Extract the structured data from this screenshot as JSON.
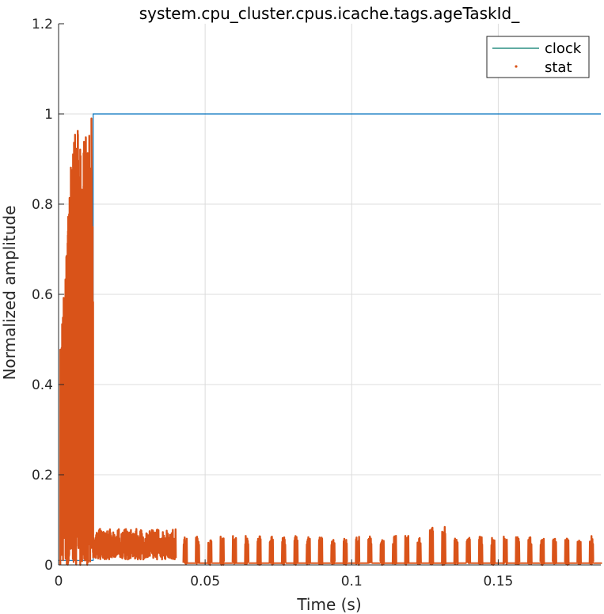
{
  "chart_data": {
    "type": "line",
    "title": "system.cpu_cluster.cpus.icache.tags.ageTaskId_",
    "xlabel": "Time (s)",
    "ylabel": "Normalized amplitude",
    "xlim": [
      0,
      0.185
    ],
    "ylim": [
      0,
      1.2
    ],
    "xticks": [
      0,
      0.05,
      0.1,
      0.15
    ],
    "xtick_labels": [
      "0",
      "0.05",
      "0.1",
      "0.15"
    ],
    "yticks": [
      0,
      0.2,
      0.4,
      0.6,
      0.8,
      1,
      1.2
    ],
    "ytick_labels": [
      "0",
      "0.2",
      "0.4",
      "0.6",
      "0.8",
      "1",
      "1.2"
    ],
    "grid": true,
    "legend_position": "top-right",
    "series": [
      {
        "name": "clock",
        "style": "line",
        "color": "#0072BD",
        "legend_color": "#00796B",
        "x": [
          0,
          0.0118,
          0.0118,
          0.185
        ],
        "y": [
          0.01,
          0.01,
          1.0,
          1.0
        ]
      },
      {
        "name": "stat",
        "style": "dots",
        "color": "#D95319",
        "description_segments": [
          {
            "x_range": [
              0,
              0.0118
            ],
            "y_range": [
              0,
              1.0
            ],
            "peak_y": 1.0
          },
          {
            "x_range": [
              0.0118,
              0.04
            ],
            "y_range": [
              0.01,
              0.08
            ]
          },
          {
            "x_range": [
              0.04,
              0.185
            ],
            "pattern": "periodic spikes",
            "period": 0.0042,
            "y_range": [
              0,
              0.065
            ]
          },
          {
            "x_range": [
              0.126,
              0.132
            ],
            "peak_y": 0.085
          }
        ]
      }
    ]
  }
}
